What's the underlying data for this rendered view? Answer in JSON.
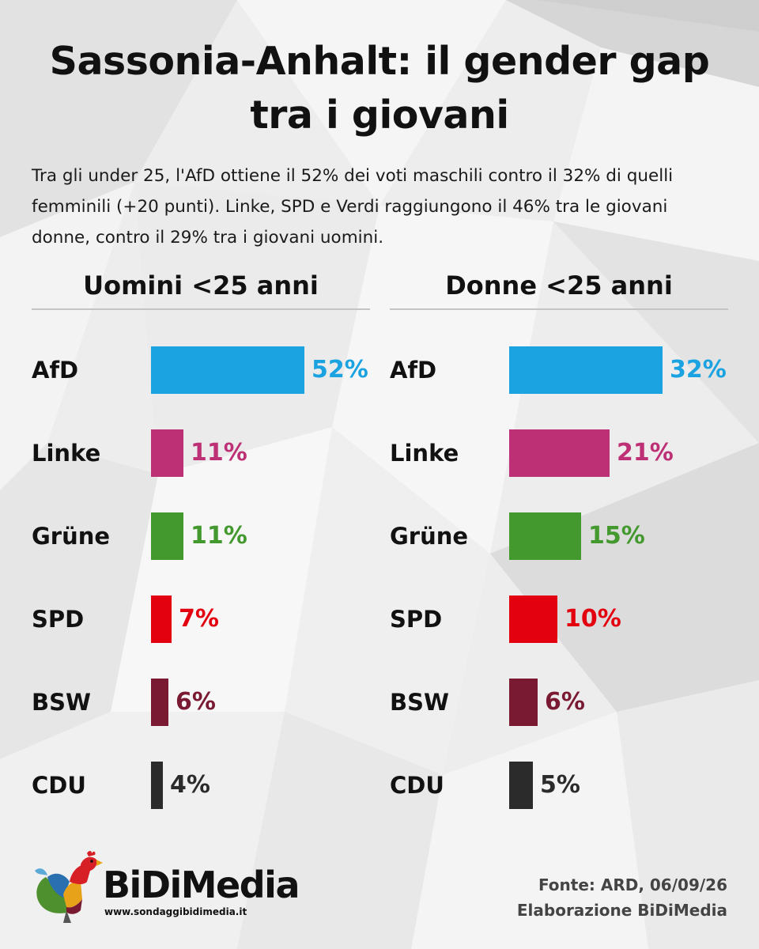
{
  "title": "Sassonia-Anhalt: il gender gap tra i giovani",
  "subtitle": "Tra gli under 25, l'AfD ottiene il 52% dei voti maschili contro il 32% di quelli femminili (+20 punti). Linke, SPD e Verdi raggiungono il 46% tra le giovani donne, contro il 29% tra i giovani uomini.",
  "chart_data": [
    {
      "type": "bar",
      "orientation": "horizontal",
      "title": "Uomini <25 anni",
      "categories": [
        "AfD",
        "Linke",
        "Grüne",
        "SPD",
        "BSW",
        "CDU"
      ],
      "values": [
        52,
        11,
        11,
        7,
        6,
        4
      ],
      "value_labels": [
        "52%",
        "11%",
        "11%",
        "7%",
        "6%",
        "4%"
      ],
      "colors": [
        "#1aa3e0",
        "#be3075",
        "#43982e",
        "#e3000f",
        "#7a1a32",
        "#2b2b2b"
      ],
      "label_colors": [
        "#1aa3e0",
        "#be3075",
        "#43982e",
        "#e3000f",
        "#7a1a32",
        "#2b2b2b"
      ],
      "xlim": [
        0,
        52
      ],
      "grid": false,
      "legend": "none"
    },
    {
      "type": "bar",
      "orientation": "horizontal",
      "title": "Donne <25 anni",
      "categories": [
        "AfD",
        "Linke",
        "Grüne",
        "SPD",
        "BSW",
        "CDU"
      ],
      "values": [
        32,
        21,
        15,
        10,
        6,
        5
      ],
      "value_labels": [
        "32%",
        "21%",
        "15%",
        "10%",
        "6%",
        "5%"
      ],
      "colors": [
        "#1aa3e0",
        "#be3075",
        "#43982e",
        "#e3000f",
        "#7a1a32",
        "#2b2b2b"
      ],
      "label_colors": [
        "#1aa3e0",
        "#be3075",
        "#43982e",
        "#e3000f",
        "#7a1a32",
        "#2b2b2b"
      ],
      "xlim": [
        0,
        32
      ],
      "grid": false,
      "legend": "none"
    }
  ],
  "logo": {
    "name": "BiDiMedia",
    "url": "www.sondaggibidimedia.it",
    "icon": "rooster-icon"
  },
  "source": {
    "line1": "Fonte: ARD, 06/09/26",
    "line2": "Elaborazione BiDiMedia"
  }
}
